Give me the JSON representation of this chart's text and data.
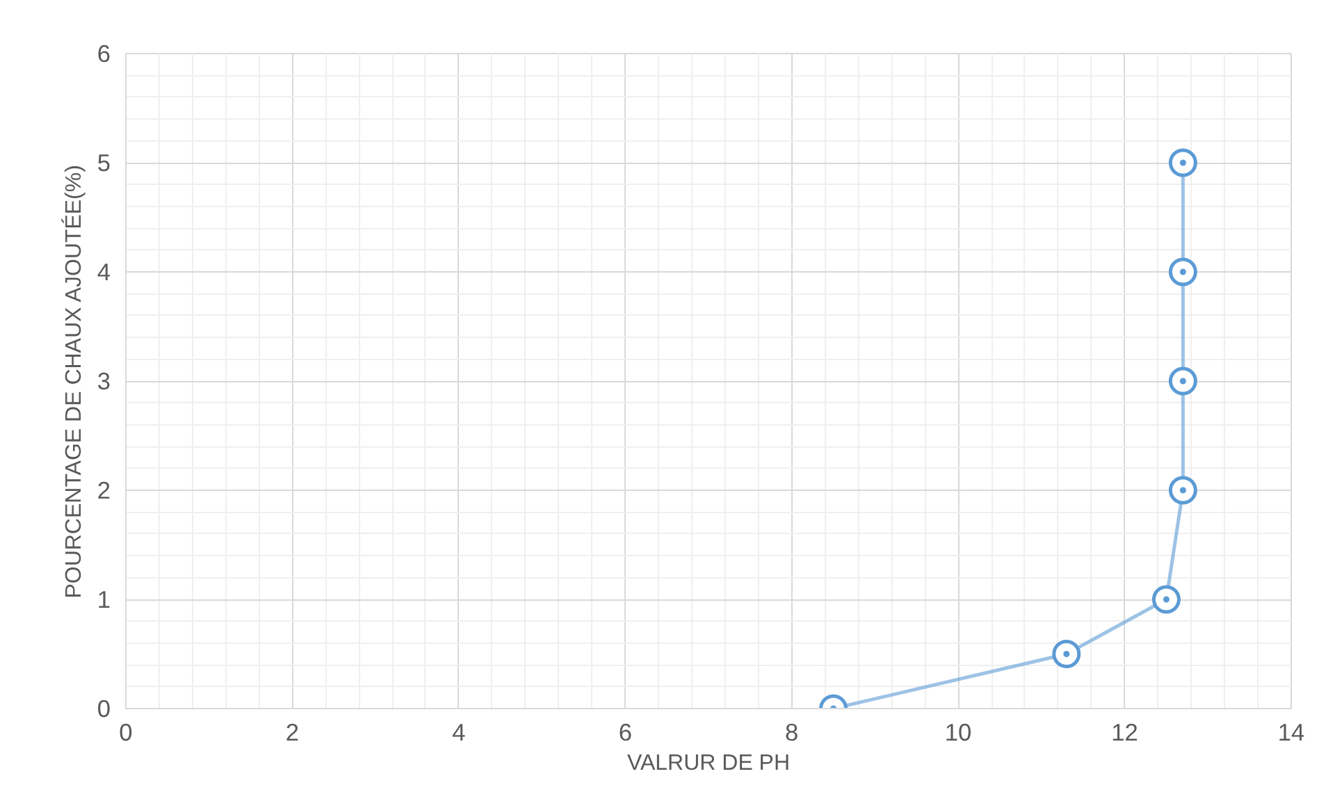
{
  "chart_data": {
    "type": "line",
    "xlabel": "VALRUR DE PH",
    "ylabel": "POURCENTAGE DE CHAUX AJOUTÉE(%)",
    "x": [
      8.5,
      11.3,
      12.5,
      12.7,
      12.7,
      12.7,
      12.7
    ],
    "series": [
      {
        "color": "#5b9bd5",
        "values": [
          0,
          0.5,
          1,
          2,
          3,
          4,
          5
        ]
      }
    ],
    "xlim": [
      0,
      14
    ],
    "xticks": [
      0,
      2,
      4,
      6,
      8,
      10,
      12,
      14
    ],
    "ylim": [
      0,
      6
    ],
    "yticks": [
      0,
      1,
      2,
      3,
      4,
      5,
      6
    ],
    "grid": true,
    "marker": "circle",
    "line_style": "solid"
  }
}
